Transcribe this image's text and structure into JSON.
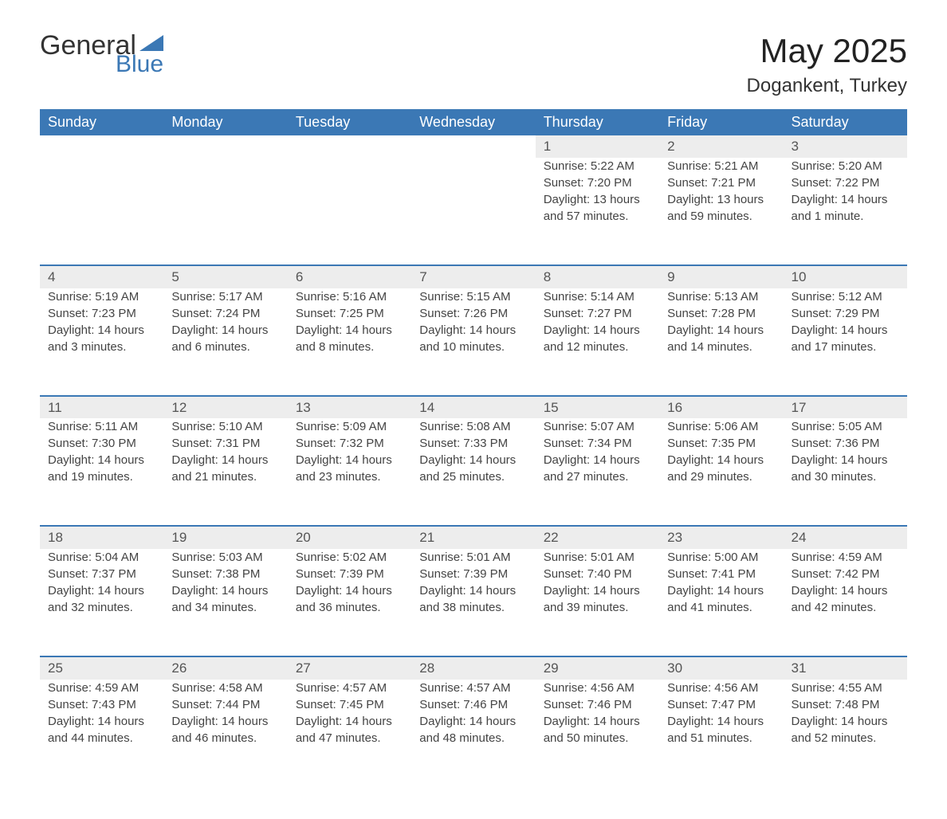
{
  "logo": {
    "text1": "General",
    "text2": "Blue",
    "triangle_color": "#3b78b5"
  },
  "title": "May 2025",
  "location": "Dogankent, Turkey",
  "colors": {
    "header_bg": "#3b78b5",
    "header_text": "#ffffff",
    "daynum_bg": "#ededed",
    "row_border": "#3b78b5",
    "body_text": "#444444"
  },
  "weekdays": [
    "Sunday",
    "Monday",
    "Tuesday",
    "Wednesday",
    "Thursday",
    "Friday",
    "Saturday"
  ],
  "weeks": [
    [
      null,
      null,
      null,
      null,
      {
        "day": "1",
        "sunrise": "Sunrise: 5:22 AM",
        "sunset": "Sunset: 7:20 PM",
        "daylight": "Daylight: 13 hours and 57 minutes."
      },
      {
        "day": "2",
        "sunrise": "Sunrise: 5:21 AM",
        "sunset": "Sunset: 7:21 PM",
        "daylight": "Daylight: 13 hours and 59 minutes."
      },
      {
        "day": "3",
        "sunrise": "Sunrise: 5:20 AM",
        "sunset": "Sunset: 7:22 PM",
        "daylight": "Daylight: 14 hours and 1 minute."
      }
    ],
    [
      {
        "day": "4",
        "sunrise": "Sunrise: 5:19 AM",
        "sunset": "Sunset: 7:23 PM",
        "daylight": "Daylight: 14 hours and 3 minutes."
      },
      {
        "day": "5",
        "sunrise": "Sunrise: 5:17 AM",
        "sunset": "Sunset: 7:24 PM",
        "daylight": "Daylight: 14 hours and 6 minutes."
      },
      {
        "day": "6",
        "sunrise": "Sunrise: 5:16 AM",
        "sunset": "Sunset: 7:25 PM",
        "daylight": "Daylight: 14 hours and 8 minutes."
      },
      {
        "day": "7",
        "sunrise": "Sunrise: 5:15 AM",
        "sunset": "Sunset: 7:26 PM",
        "daylight": "Daylight: 14 hours and 10 minutes."
      },
      {
        "day": "8",
        "sunrise": "Sunrise: 5:14 AM",
        "sunset": "Sunset: 7:27 PM",
        "daylight": "Daylight: 14 hours and 12 minutes."
      },
      {
        "day": "9",
        "sunrise": "Sunrise: 5:13 AM",
        "sunset": "Sunset: 7:28 PM",
        "daylight": "Daylight: 14 hours and 14 minutes."
      },
      {
        "day": "10",
        "sunrise": "Sunrise: 5:12 AM",
        "sunset": "Sunset: 7:29 PM",
        "daylight": "Daylight: 14 hours and 17 minutes."
      }
    ],
    [
      {
        "day": "11",
        "sunrise": "Sunrise: 5:11 AM",
        "sunset": "Sunset: 7:30 PM",
        "daylight": "Daylight: 14 hours and 19 minutes."
      },
      {
        "day": "12",
        "sunrise": "Sunrise: 5:10 AM",
        "sunset": "Sunset: 7:31 PM",
        "daylight": "Daylight: 14 hours and 21 minutes."
      },
      {
        "day": "13",
        "sunrise": "Sunrise: 5:09 AM",
        "sunset": "Sunset: 7:32 PM",
        "daylight": "Daylight: 14 hours and 23 minutes."
      },
      {
        "day": "14",
        "sunrise": "Sunrise: 5:08 AM",
        "sunset": "Sunset: 7:33 PM",
        "daylight": "Daylight: 14 hours and 25 minutes."
      },
      {
        "day": "15",
        "sunrise": "Sunrise: 5:07 AM",
        "sunset": "Sunset: 7:34 PM",
        "daylight": "Daylight: 14 hours and 27 minutes."
      },
      {
        "day": "16",
        "sunrise": "Sunrise: 5:06 AM",
        "sunset": "Sunset: 7:35 PM",
        "daylight": "Daylight: 14 hours and 29 minutes."
      },
      {
        "day": "17",
        "sunrise": "Sunrise: 5:05 AM",
        "sunset": "Sunset: 7:36 PM",
        "daylight": "Daylight: 14 hours and 30 minutes."
      }
    ],
    [
      {
        "day": "18",
        "sunrise": "Sunrise: 5:04 AM",
        "sunset": "Sunset: 7:37 PM",
        "daylight": "Daylight: 14 hours and 32 minutes."
      },
      {
        "day": "19",
        "sunrise": "Sunrise: 5:03 AM",
        "sunset": "Sunset: 7:38 PM",
        "daylight": "Daylight: 14 hours and 34 minutes."
      },
      {
        "day": "20",
        "sunrise": "Sunrise: 5:02 AM",
        "sunset": "Sunset: 7:39 PM",
        "daylight": "Daylight: 14 hours and 36 minutes."
      },
      {
        "day": "21",
        "sunrise": "Sunrise: 5:01 AM",
        "sunset": "Sunset: 7:39 PM",
        "daylight": "Daylight: 14 hours and 38 minutes."
      },
      {
        "day": "22",
        "sunrise": "Sunrise: 5:01 AM",
        "sunset": "Sunset: 7:40 PM",
        "daylight": "Daylight: 14 hours and 39 minutes."
      },
      {
        "day": "23",
        "sunrise": "Sunrise: 5:00 AM",
        "sunset": "Sunset: 7:41 PM",
        "daylight": "Daylight: 14 hours and 41 minutes."
      },
      {
        "day": "24",
        "sunrise": "Sunrise: 4:59 AM",
        "sunset": "Sunset: 7:42 PM",
        "daylight": "Daylight: 14 hours and 42 minutes."
      }
    ],
    [
      {
        "day": "25",
        "sunrise": "Sunrise: 4:59 AM",
        "sunset": "Sunset: 7:43 PM",
        "daylight": "Daylight: 14 hours and 44 minutes."
      },
      {
        "day": "26",
        "sunrise": "Sunrise: 4:58 AM",
        "sunset": "Sunset: 7:44 PM",
        "daylight": "Daylight: 14 hours and 46 minutes."
      },
      {
        "day": "27",
        "sunrise": "Sunrise: 4:57 AM",
        "sunset": "Sunset: 7:45 PM",
        "daylight": "Daylight: 14 hours and 47 minutes."
      },
      {
        "day": "28",
        "sunrise": "Sunrise: 4:57 AM",
        "sunset": "Sunset: 7:46 PM",
        "daylight": "Daylight: 14 hours and 48 minutes."
      },
      {
        "day": "29",
        "sunrise": "Sunrise: 4:56 AM",
        "sunset": "Sunset: 7:46 PM",
        "daylight": "Daylight: 14 hours and 50 minutes."
      },
      {
        "day": "30",
        "sunrise": "Sunrise: 4:56 AM",
        "sunset": "Sunset: 7:47 PM",
        "daylight": "Daylight: 14 hours and 51 minutes."
      },
      {
        "day": "31",
        "sunrise": "Sunrise: 4:55 AM",
        "sunset": "Sunset: 7:48 PM",
        "daylight": "Daylight: 14 hours and 52 minutes."
      }
    ]
  ]
}
